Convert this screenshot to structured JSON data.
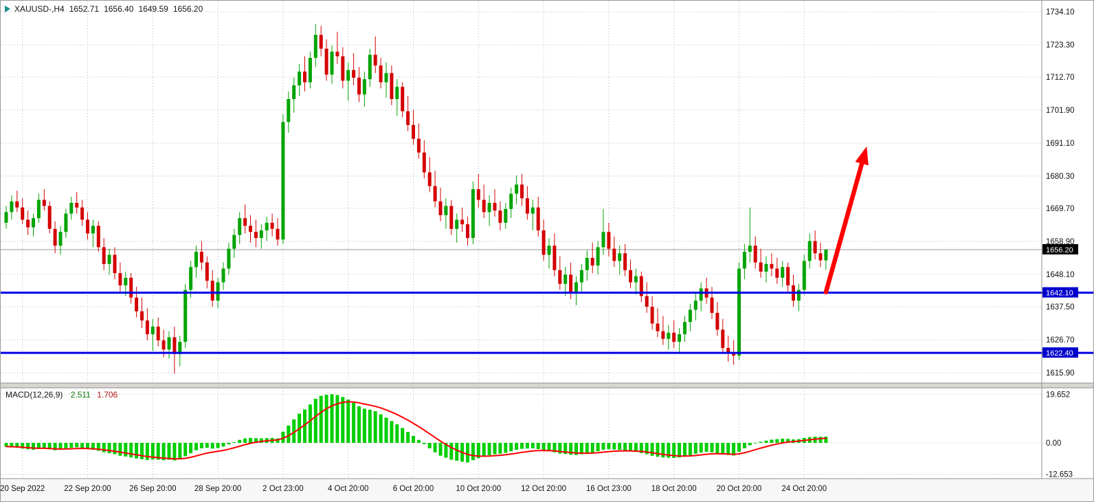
{
  "header": {
    "symbol": "XAUUSD-,H4",
    "open": "1652.71",
    "high": "1656.40",
    "low": "1649.59",
    "close": "1656.20"
  },
  "price_axis": {
    "items": [
      {
        "label": "1734.10",
        "value": 1734.1
      },
      {
        "label": "1723.30",
        "value": 1723.3
      },
      {
        "label": "1712.70",
        "value": 1712.7
      },
      {
        "label": "1701.90",
        "value": 1701.9
      },
      {
        "label": "1691.10",
        "value": 1691.1
      },
      {
        "label": "1680.30",
        "value": 1680.3
      },
      {
        "label": "1669.70",
        "value": 1669.7
      },
      {
        "label": "1658.90",
        "value": 1658.9
      },
      {
        "label": "1648.10",
        "value": 1648.1
      },
      {
        "label": "1637.50",
        "value": 1637.5
      },
      {
        "label": "1626.70",
        "value": 1626.7
      },
      {
        "label": "1615.90",
        "value": 1615.9
      }
    ]
  },
  "time_axis": {
    "items": [
      {
        "label": "20 Sep 2022",
        "index": 3
      },
      {
        "label": "22 Sep 20:00",
        "index": 15
      },
      {
        "label": "26 Sep 20:00",
        "index": 27
      },
      {
        "label": "28 Sep 20:00",
        "index": 39
      },
      {
        "label": "2 Oct 23:00",
        "index": 51
      },
      {
        "label": "4 Oct 20:00",
        "index": 63
      },
      {
        "label": "6 Oct 20:00",
        "index": 75
      },
      {
        "label": "10 Oct 20:00",
        "index": 87
      },
      {
        "label": "12 Oct 20:00",
        "index": 99
      },
      {
        "label": "16 Oct 23:00",
        "index": 111
      },
      {
        "label": "18 Oct 20:00",
        "index": 123
      },
      {
        "label": "20 Oct 20:00",
        "index": 135
      },
      {
        "label": "24 Oct 20:00",
        "index": 147
      }
    ]
  },
  "current_price": {
    "label": "1656.20",
    "value": 1656.2
  },
  "hlines": [
    {
      "label": "1642.10",
      "value": 1642.1
    },
    {
      "label": "1622.40",
      "value": 1622.4
    }
  ],
  "macd_panel": {
    "name": "MACD(12,26,9)",
    "value_main": "2.511",
    "value_signal": "1.706",
    "axis": [
      {
        "label": "19.652",
        "value": 19.652
      },
      {
        "label": "0.00",
        "value": 0
      },
      {
        "label": "-12.653",
        "value": -12.653
      }
    ]
  },
  "chart_data": {
    "type": "candlestick",
    "symbol": "XAUUSD",
    "timeframe": "H4",
    "title": "XAUUSD-,H4",
    "ylim": [
      1615.9,
      1734.1
    ],
    "colors": {
      "bull": "#00a400",
      "bear": "#d40000",
      "histogram": "#00ce00",
      "signal": "#ff0000",
      "grid": "#b4b4b4",
      "support": "#0000e6",
      "badge_support_bg": "#0000cd",
      "badge_current_bg": "#000000",
      "current_line": "#9a9a9a",
      "arrow": "#ff0000"
    },
    "ohlc": [
      [
        1665.0,
        1670.5,
        1663.0,
        1668.5
      ],
      [
        1668.5,
        1674.0,
        1666.0,
        1672.0
      ],
      [
        1672.0,
        1675.5,
        1668.5,
        1670.0
      ],
      [
        1670.0,
        1673.0,
        1664.5,
        1666.0
      ],
      [
        1666.0,
        1669.0,
        1661.0,
        1663.5
      ],
      [
        1663.5,
        1668.0,
        1660.5,
        1666.5
      ],
      [
        1666.5,
        1674.5,
        1665.0,
        1672.5
      ],
      [
        1672.5,
        1676.0,
        1669.0,
        1670.5
      ],
      [
        1670.5,
        1672.0,
        1661.5,
        1663.0
      ],
      [
        1663.0,
        1665.5,
        1655.0,
        1657.5
      ],
      [
        1657.5,
        1664.0,
        1654.5,
        1662.0
      ],
      [
        1662.0,
        1669.5,
        1660.0,
        1668.0
      ],
      [
        1668.0,
        1673.5,
        1666.0,
        1671.5
      ],
      [
        1671.5,
        1675.0,
        1668.0,
        1670.0
      ],
      [
        1670.0,
        1672.5,
        1664.0,
        1666.0
      ],
      [
        1666.0,
        1668.5,
        1659.5,
        1661.5
      ],
      [
        1661.5,
        1666.0,
        1657.0,
        1664.0
      ],
      [
        1664.0,
        1665.5,
        1655.5,
        1657.0
      ],
      [
        1657.0,
        1660.0,
        1649.5,
        1651.5
      ],
      [
        1651.5,
        1656.5,
        1648.0,
        1654.5
      ],
      [
        1654.5,
        1657.0,
        1646.5,
        1648.5
      ],
      [
        1648.5,
        1652.0,
        1642.5,
        1644.5
      ],
      [
        1644.5,
        1649.0,
        1641.0,
        1647.0
      ],
      [
        1647.0,
        1648.5,
        1638.5,
        1640.5
      ],
      [
        1640.5,
        1644.0,
        1634.0,
        1636.0
      ],
      [
        1636.0,
        1640.5,
        1630.5,
        1633.0
      ],
      [
        1633.0,
        1637.0,
        1626.5,
        1628.5
      ],
      [
        1628.5,
        1633.5,
        1623.0,
        1631.0
      ],
      [
        1631.0,
        1634.0,
        1624.5,
        1626.5
      ],
      [
        1626.5,
        1630.0,
        1621.0,
        1623.5
      ],
      [
        1623.5,
        1629.5,
        1620.5,
        1627.5
      ],
      [
        1627.5,
        1631.0,
        1615.5,
        1622.0
      ],
      [
        1622.0,
        1628.0,
        1618.0,
        1626.0
      ],
      [
        1626.0,
        1645.0,
        1624.0,
        1643.0
      ],
      [
        1643.0,
        1652.5,
        1640.5,
        1650.5
      ],
      [
        1650.5,
        1657.5,
        1647.0,
        1655.5
      ],
      [
        1655.5,
        1659.0,
        1649.5,
        1652.0
      ],
      [
        1652.0,
        1654.0,
        1643.5,
        1646.0
      ],
      [
        1646.0,
        1649.5,
        1637.5,
        1639.5
      ],
      [
        1639.5,
        1647.0,
        1637.0,
        1645.5
      ],
      [
        1645.5,
        1652.0,
        1643.0,
        1650.0
      ],
      [
        1650.0,
        1658.5,
        1648.0,
        1656.5
      ],
      [
        1656.5,
        1663.0,
        1653.5,
        1661.0
      ],
      [
        1661.0,
        1668.5,
        1658.0,
        1666.5
      ],
      [
        1666.5,
        1671.0,
        1661.5,
        1664.0
      ],
      [
        1664.0,
        1667.5,
        1658.5,
        1662.0
      ],
      [
        1662.0,
        1666.0,
        1657.0,
        1660.0
      ],
      [
        1660.0,
        1664.5,
        1656.5,
        1662.5
      ],
      [
        1662.5,
        1667.0,
        1659.0,
        1665.0
      ],
      [
        1665.0,
        1668.0,
        1660.5,
        1663.0
      ],
      [
        1663.0,
        1666.5,
        1657.5,
        1659.5
      ],
      [
        1659.5,
        1700.5,
        1658.0,
        1698.0
      ],
      [
        1698.0,
        1708.0,
        1694.5,
        1705.5
      ],
      [
        1705.5,
        1712.5,
        1701.0,
        1710.0
      ],
      [
        1710.0,
        1717.0,
        1706.5,
        1714.5
      ],
      [
        1714.5,
        1719.5,
        1708.0,
        1711.0
      ],
      [
        1711.0,
        1721.0,
        1709.0,
        1719.0
      ],
      [
        1719.0,
        1730.0,
        1716.0,
        1726.5
      ],
      [
        1726.5,
        1729.5,
        1719.5,
        1722.0
      ],
      [
        1722.0,
        1725.0,
        1711.5,
        1713.5
      ],
      [
        1713.5,
        1723.0,
        1710.5,
        1721.0
      ],
      [
        1721.0,
        1727.5,
        1717.0,
        1719.5
      ],
      [
        1719.5,
        1722.5,
        1709.0,
        1711.5
      ],
      [
        1711.5,
        1717.5,
        1705.0,
        1715.0
      ],
      [
        1715.0,
        1720.5,
        1710.0,
        1712.5
      ],
      [
        1712.5,
        1716.0,
        1704.5,
        1707.0
      ],
      [
        1707.0,
        1714.5,
        1703.0,
        1712.0
      ],
      [
        1712.0,
        1722.0,
        1709.5,
        1720.0
      ],
      [
        1720.0,
        1726.0,
        1714.0,
        1716.5
      ],
      [
        1716.5,
        1719.0,
        1709.0,
        1711.0
      ],
      [
        1711.0,
        1717.5,
        1706.0,
        1714.0
      ],
      [
        1714.0,
        1716.5,
        1703.5,
        1705.5
      ],
      [
        1705.5,
        1712.0,
        1700.0,
        1709.5
      ],
      [
        1709.5,
        1711.0,
        1699.5,
        1701.5
      ],
      [
        1701.5,
        1706.5,
        1695.0,
        1697.0
      ],
      [
        1697.0,
        1702.0,
        1690.5,
        1692.5
      ],
      [
        1692.5,
        1697.5,
        1686.0,
        1688.0
      ],
      [
        1688.0,
        1692.0,
        1679.5,
        1681.5
      ],
      [
        1681.5,
        1686.5,
        1675.0,
        1677.0
      ],
      [
        1677.0,
        1682.0,
        1670.0,
        1672.0
      ],
      [
        1672.0,
        1676.5,
        1665.5,
        1667.5
      ],
      [
        1667.5,
        1673.0,
        1663.0,
        1670.5
      ],
      [
        1670.5,
        1672.5,
        1661.0,
        1663.0
      ],
      [
        1663.0,
        1668.0,
        1658.5,
        1666.0
      ],
      [
        1666.0,
        1670.0,
        1662.0,
        1664.5
      ],
      [
        1664.5,
        1667.0,
        1657.5,
        1660.0
      ],
      [
        1660.0,
        1678.5,
        1658.0,
        1676.0
      ],
      [
        1676.0,
        1681.0,
        1670.0,
        1672.5
      ],
      [
        1672.5,
        1677.5,
        1666.5,
        1668.5
      ],
      [
        1668.5,
        1674.0,
        1664.0,
        1671.5
      ],
      [
        1671.5,
        1676.0,
        1667.0,
        1669.0
      ],
      [
        1669.0,
        1672.0,
        1662.5,
        1665.0
      ],
      [
        1665.0,
        1671.5,
        1663.0,
        1669.5
      ],
      [
        1669.5,
        1676.5,
        1666.5,
        1674.5
      ],
      [
        1674.5,
        1680.5,
        1671.0,
        1677.5
      ],
      [
        1677.5,
        1681.0,
        1670.5,
        1673.0
      ],
      [
        1673.0,
        1677.0,
        1666.0,
        1668.0
      ],
      [
        1668.0,
        1672.5,
        1662.5,
        1670.0
      ],
      [
        1670.0,
        1673.5,
        1660.5,
        1662.5
      ],
      [
        1662.5,
        1666.0,
        1652.5,
        1654.5
      ],
      [
        1654.5,
        1660.0,
        1650.0,
        1657.5
      ],
      [
        1657.5,
        1661.5,
        1647.5,
        1649.5
      ],
      [
        1649.5,
        1654.0,
        1643.0,
        1645.0
      ],
      [
        1645.0,
        1650.5,
        1641.0,
        1648.0
      ],
      [
        1648.0,
        1652.0,
        1640.0,
        1642.0
      ],
      [
        1642.0,
        1647.5,
        1638.0,
        1645.5
      ],
      [
        1645.5,
        1651.5,
        1642.5,
        1649.5
      ],
      [
        1649.5,
        1656.0,
        1646.0,
        1653.5
      ],
      [
        1653.5,
        1658.5,
        1648.5,
        1651.0
      ],
      [
        1651.0,
        1659.0,
        1648.0,
        1657.0
      ],
      [
        1657.0,
        1669.5,
        1654.5,
        1662.0
      ],
      [
        1662.0,
        1665.0,
        1654.0,
        1656.5
      ],
      [
        1656.5,
        1660.5,
        1650.5,
        1652.5
      ],
      [
        1652.5,
        1657.5,
        1648.0,
        1655.0
      ],
      [
        1655.0,
        1658.0,
        1647.5,
        1649.5
      ],
      [
        1649.5,
        1653.0,
        1643.5,
        1645.5
      ],
      [
        1645.5,
        1650.0,
        1641.5,
        1647.5
      ],
      [
        1647.5,
        1649.0,
        1639.0,
        1641.0
      ],
      [
        1641.0,
        1645.5,
        1635.5,
        1637.5
      ],
      [
        1637.5,
        1641.0,
        1630.0,
        1632.0
      ],
      [
        1632.0,
        1637.0,
        1627.5,
        1629.5
      ],
      [
        1629.5,
        1634.5,
        1625.0,
        1627.0
      ],
      [
        1627.0,
        1631.5,
        1623.5,
        1629.0
      ],
      [
        1629.0,
        1633.0,
        1624.0,
        1626.0
      ],
      [
        1626.0,
        1630.5,
        1622.5,
        1628.5
      ],
      [
        1628.5,
        1634.5,
        1626.0,
        1632.5
      ],
      [
        1632.5,
        1638.5,
        1629.5,
        1636.5
      ],
      [
        1636.5,
        1642.0,
        1633.0,
        1639.5
      ],
      [
        1639.5,
        1645.5,
        1636.0,
        1643.5
      ],
      [
        1643.5,
        1647.0,
        1638.5,
        1640.5
      ],
      [
        1640.5,
        1644.0,
        1633.5,
        1635.5
      ],
      [
        1635.5,
        1639.0,
        1628.0,
        1630.0
      ],
      [
        1630.0,
        1633.5,
        1622.0,
        1624.0
      ],
      [
        1624.0,
        1628.0,
        1619.5,
        1622.5
      ],
      [
        1622.5,
        1626.5,
        1618.5,
        1621.5
      ],
      [
        1621.5,
        1652.0,
        1620.0,
        1650.0
      ],
      [
        1650.0,
        1658.0,
        1646.5,
        1655.5
      ],
      [
        1655.5,
        1670.0,
        1652.0,
        1657.5
      ],
      [
        1657.5,
        1660.5,
        1650.0,
        1652.0
      ],
      [
        1652.0,
        1656.5,
        1647.0,
        1649.0
      ],
      [
        1649.0,
        1654.0,
        1645.5,
        1651.5
      ],
      [
        1651.5,
        1655.0,
        1647.5,
        1650.0
      ],
      [
        1650.0,
        1653.5,
        1645.0,
        1647.0
      ],
      [
        1647.0,
        1652.5,
        1644.0,
        1650.5
      ],
      [
        1650.5,
        1652.0,
        1642.5,
        1644.5
      ],
      [
        1644.5,
        1648.0,
        1637.5,
        1639.5
      ],
      [
        1639.5,
        1645.0,
        1636.0,
        1643.0
      ],
      [
        1643.0,
        1654.5,
        1641.5,
        1652.5
      ],
      [
        1652.5,
        1661.5,
        1650.0,
        1659.0
      ],
      [
        1659.0,
        1662.5,
        1653.0,
        1655.0
      ],
      [
        1655.0,
        1658.5,
        1650.5,
        1652.7
      ],
      [
        1652.7,
        1656.4,
        1649.6,
        1656.2
      ]
    ],
    "macd": {
      "type": "bar-line",
      "ylim": [
        -12.653,
        19.652
      ],
      "signal_ema_period": 9,
      "histogram": [
        -1.5,
        -1.8,
        -2.0,
        -2.3,
        -2.6,
        -2.8,
        -2.5,
        -2.2,
        -2.6,
        -3.0,
        -2.8,
        -2.4,
        -2.0,
        -1.8,
        -2.1,
        -2.5,
        -2.8,
        -3.2,
        -3.8,
        -4.2,
        -4.6,
        -5.2,
        -5.5,
        -5.9,
        -6.3,
        -6.6,
        -6.9,
        -6.7,
        -6.8,
        -7.0,
        -6.8,
        -7.1,
        -6.5,
        -5.4,
        -4.2,
        -3.0,
        -2.2,
        -2.0,
        -2.3,
        -2.1,
        -1.5,
        -0.6,
        0.3,
        1.2,
        1.8,
        2.0,
        1.9,
        1.8,
        1.9,
        2.0,
        1.8,
        4.5,
        7.0,
        9.5,
        11.8,
        13.5,
        15.5,
        17.8,
        19.0,
        19.4,
        19.65,
        19.3,
        18.5,
        17.5,
        16.2,
        14.8,
        13.8,
        13.4,
        12.8,
        11.5,
        10.2,
        8.8,
        7.5,
        6.0,
        4.4,
        2.8,
        1.2,
        -0.5,
        -2.2,
        -3.8,
        -5.2,
        -6.0,
        -6.8,
        -7.2,
        -7.6,
        -7.9,
        -7.0,
        -6.2,
        -5.6,
        -5.0,
        -4.6,
        -4.4,
        -4.0,
        -3.4,
        -2.8,
        -2.4,
        -2.3,
        -2.2,
        -2.5,
        -3.0,
        -3.3,
        -3.8,
        -4.3,
        -4.5,
        -4.8,
        -4.9,
        -4.6,
        -4.2,
        -3.9,
        -3.4,
        -2.8,
        -2.6,
        -2.7,
        -2.8,
        -3.0,
        -3.4,
        -3.7,
        -4.1,
        -4.6,
        -5.2,
        -5.6,
        -5.9,
        -6.0,
        -6.1,
        -5.9,
        -5.5,
        -5.0,
        -4.4,
        -3.9,
        -3.6,
        -3.8,
        -4.2,
        -4.6,
        -4.9,
        -5.1,
        -3.6,
        -2.2,
        -1.0,
        -0.2,
        0.4,
        0.9,
        1.3,
        1.5,
        1.7,
        1.6,
        1.4,
        1.5,
        2.0,
        2.3,
        2.5,
        2.45,
        2.511
      ]
    },
    "annotations": {
      "arrow": {
        "from_index": 151,
        "from_price": 1642.3,
        "to_index": 158.5,
        "to_price": 1690.0
      },
      "support_lines": [
        1642.1,
        1622.4
      ]
    }
  }
}
